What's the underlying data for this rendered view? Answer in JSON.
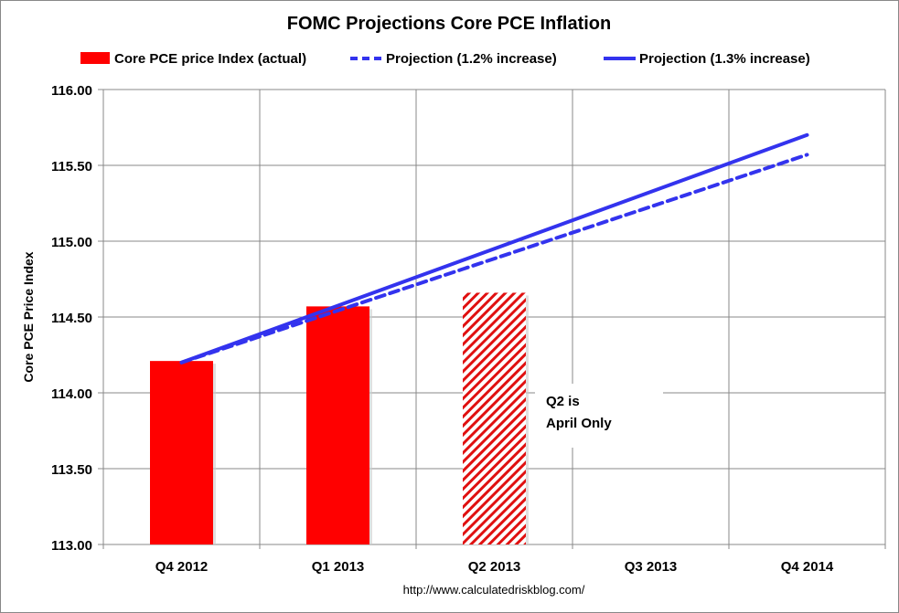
{
  "chart_data": {
    "type": "bar",
    "title": "FOMC Projections Core PCE Inflation",
    "xlabel": "",
    "ylabel": "Core PCE Price Index",
    "ylim": [
      113.0,
      116.0
    ],
    "yticks": [
      "113.00",
      "113.50",
      "114.00",
      "114.50",
      "115.00",
      "115.50",
      "116.00"
    ],
    "categories": [
      "Q4 2012",
      "Q1 2013",
      "Q2 2013",
      "Q3 2013",
      "Q4 2014"
    ],
    "grid": true,
    "legend_position": "top",
    "series": [
      {
        "name": "Core PCE price Index (actual)",
        "kind": "bar",
        "color": "#ff0000",
        "values": [
          114.21,
          114.57,
          114.66,
          null,
          null
        ],
        "hatched": [
          false,
          false,
          true,
          false,
          false
        ]
      },
      {
        "name": "Projection (1.2% increase)",
        "kind": "line",
        "style": "dashed",
        "color": "#3333ee",
        "values": [
          114.2,
          null,
          null,
          null,
          115.57
        ]
      },
      {
        "name": "Projection (1.3% increase)",
        "kind": "line",
        "style": "solid",
        "color": "#3333ee",
        "values": [
          114.2,
          null,
          null,
          null,
          115.7
        ]
      }
    ],
    "annotations": [
      "Q2 is",
      "April Only"
    ],
    "source": "http://www.calculatedriskblog.com/"
  }
}
